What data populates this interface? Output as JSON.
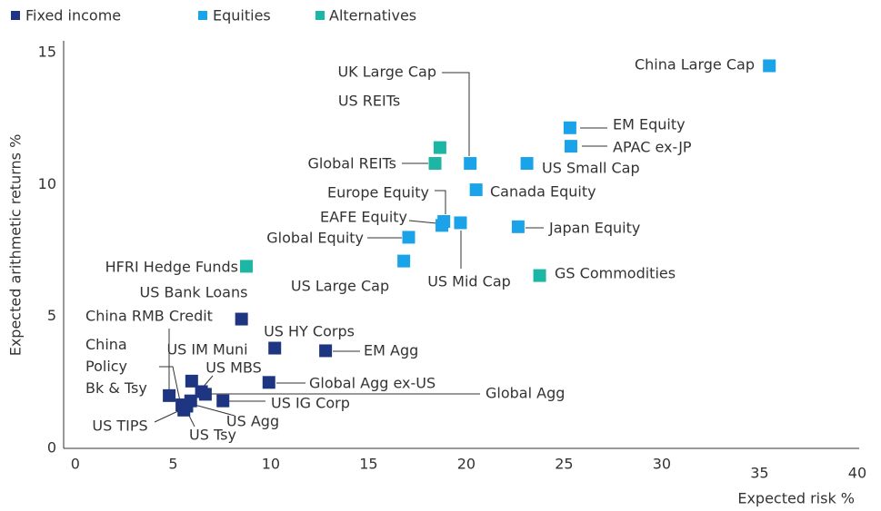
{
  "chart_data": {
    "type": "scatter",
    "x_label": "Expected risk %",
    "y_label": "Expected arithmetic returns %",
    "xlim": [
      -0.6,
      40.5
    ],
    "ylim": [
      0,
      15.5
    ],
    "xticks": [
      0,
      5,
      10,
      15,
      20,
      25,
      30,
      35,
      40
    ],
    "yticks": [
      0,
      5,
      10,
      15
    ],
    "legend": "top-left",
    "series": [
      {
        "name": "Fixed income",
        "color": "#1e3582",
        "labels": [
          "US Bank Loans",
          "US HY Corps",
          "EM Agg",
          "US IM Muni",
          "Global Agg ex-US",
          "China RMB Credit",
          "China Policy Bk & Tsy",
          "US TIPS",
          "US Tsy",
          "US Agg",
          "US MBS",
          "Global Agg",
          "US IG Corp"
        ],
        "x": [
          8.5,
          10.2,
          12.8,
          5.95,
          9.9,
          4.8,
          5.45,
          5.55,
          5.7,
          5.9,
          6.45,
          6.65,
          7.55
        ],
        "values": [
          4.9,
          3.8,
          3.7,
          2.55,
          2.5,
          2.0,
          1.65,
          1.45,
          1.6,
          1.8,
          2.15,
          2.05,
          1.8
        ]
      },
      {
        "name": "Equities",
        "color": "#1aa3e8",
        "labels": [
          "China Large Cap",
          "EM Equity",
          "APAC ex-JP",
          "US Small Cap",
          "UK Large Cap",
          "Canada Equity",
          "Europe Equity",
          "EAFE Equity",
          "US Mid Cap",
          "Japan Equity",
          "Global Equity",
          "US Large Cap"
        ],
        "x": [
          35.5,
          25.3,
          25.35,
          23.1,
          20.2,
          20.5,
          18.85,
          18.75,
          19.7,
          22.65,
          17.05,
          16.8
        ],
        "values": [
          14.5,
          12.15,
          11.45,
          10.8,
          10.8,
          9.8,
          8.6,
          8.45,
          8.55,
          8.4,
          8.0,
          7.1
        ]
      },
      {
        "name": "Alternatives",
        "color": "#1db5a4",
        "labels": [
          "US REITs",
          "Global REITs",
          "HFRI Hedge Funds",
          "GS Commodities"
        ],
        "x": [
          18.65,
          18.4,
          8.75,
          23.75
        ],
        "values": [
          11.4,
          10.8,
          6.9,
          6.55
        ]
      }
    ]
  }
}
